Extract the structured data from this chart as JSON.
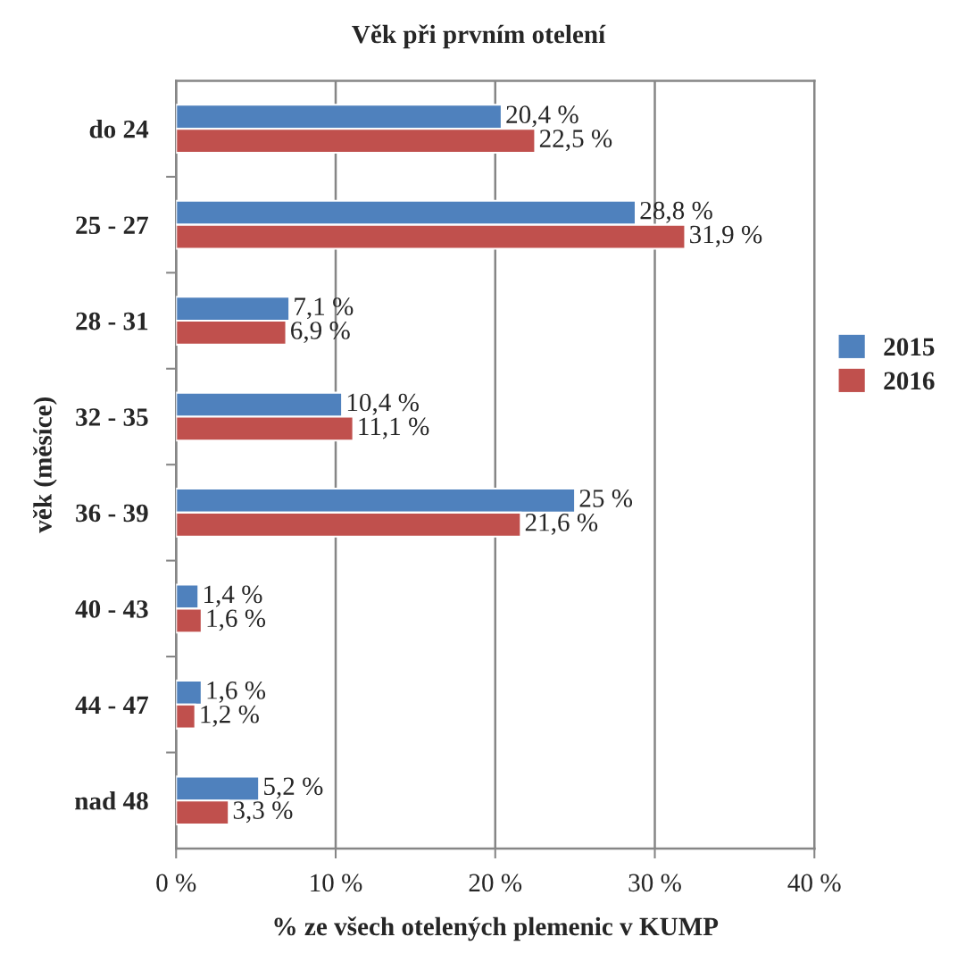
{
  "chart_data": {
    "type": "bar",
    "orientation": "horizontal",
    "title": "Věk při prvním otelení",
    "xlabel": "% ze všech otelených plemenic v KUMP",
    "ylabel": "věk (měsíce)",
    "categories": [
      "do 24",
      "25 - 27",
      "28 - 31",
      "32 - 35",
      "36 - 39",
      "40 - 43",
      "44 - 47",
      "nad 48"
    ],
    "series": [
      {
        "name": "2015",
        "color": "#4f81bd",
        "values": [
          20.4,
          28.8,
          7.1,
          10.4,
          25,
          1.4,
          1.6,
          5.2
        ],
        "value_labels": [
          "20,4 %",
          "28,8 %",
          "7,1 %",
          "10,4 %",
          "25 %",
          "1,4 %",
          "1,6 %",
          "5,2 %"
        ]
      },
      {
        "name": "2016",
        "color": "#c0504d",
        "values": [
          22.5,
          31.9,
          6.9,
          11.1,
          21.6,
          1.6,
          1.2,
          3.3
        ],
        "value_labels": [
          "22,5 %",
          "31,9 %",
          "6,9 %",
          "11,1 %",
          "21,6 %",
          "1,6 %",
          "1,2 %",
          "3,3 %"
        ]
      }
    ],
    "xlim": [
      0,
      40
    ],
    "xticks": [
      {
        "value": 0,
        "label": "0 %"
      },
      {
        "value": 10,
        "label": "10 %"
      },
      {
        "value": 20,
        "label": "20 %"
      },
      {
        "value": 30,
        "label": "30 %"
      },
      {
        "value": 40,
        "label": "40 %"
      }
    ],
    "grid": "x",
    "legend": "right"
  }
}
